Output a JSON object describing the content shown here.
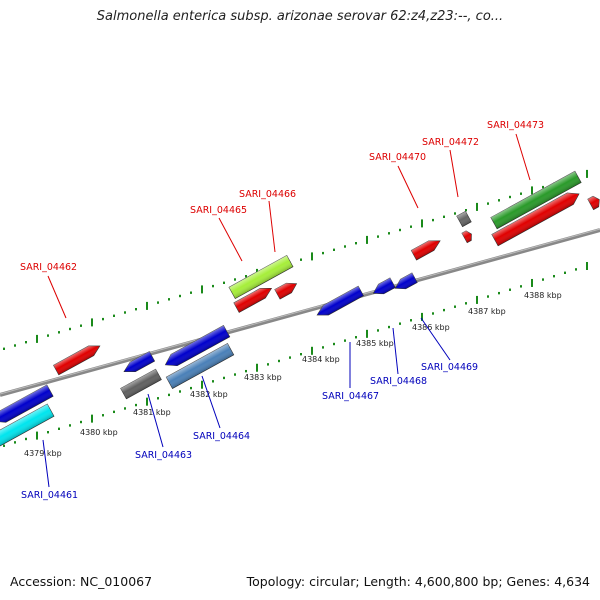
{
  "title": "Salmonella enterica subsp. arizonae serovar 62:z4,z23:--, co...",
  "footer": {
    "accession": "Accession: NC_010067",
    "topology": "Topology: circular; Length: 4,600,800 bp; Genes: 4,634"
  },
  "colors": {
    "forward_label": "#dd0000",
    "reverse_label": "#0000bb",
    "tick": "#1a8a1a",
    "backbone": "#888888"
  },
  "kbp_labels": [
    "4379 kbp",
    "4380 kbp",
    "4381 kbp",
    "4382 kbp",
    "4383 kbp",
    "4384 kbp",
    "4385 kbp",
    "4386 kbp",
    "4387 kbp",
    "4388 kbp"
  ],
  "genes_forward": [
    {
      "label": "SARI_04462",
      "color": "#dd0000"
    },
    {
      "label": "SARI_04465",
      "color": "#dd0000"
    },
    {
      "label": "SARI_04466",
      "color": "#dd0000"
    },
    {
      "label": "SARI_04470",
      "color": "#dd0000"
    },
    {
      "label": "SARI_04472",
      "color": "#dd0000"
    },
    {
      "label": "SARI_04473",
      "color": "#dd0000"
    }
  ],
  "genes_reverse": [
    {
      "label": "SARI_04461",
      "color": "#0000bb"
    },
    {
      "label": "SARI_04463",
      "color": "#0000bb"
    },
    {
      "label": "SARI_04464",
      "color": "#0000bb"
    },
    {
      "label": "SARI_04467",
      "color": "#0000bb"
    },
    {
      "label": "SARI_04468",
      "color": "#0000bb"
    },
    {
      "label": "SARI_04469",
      "color": "#0000bb"
    }
  ]
}
